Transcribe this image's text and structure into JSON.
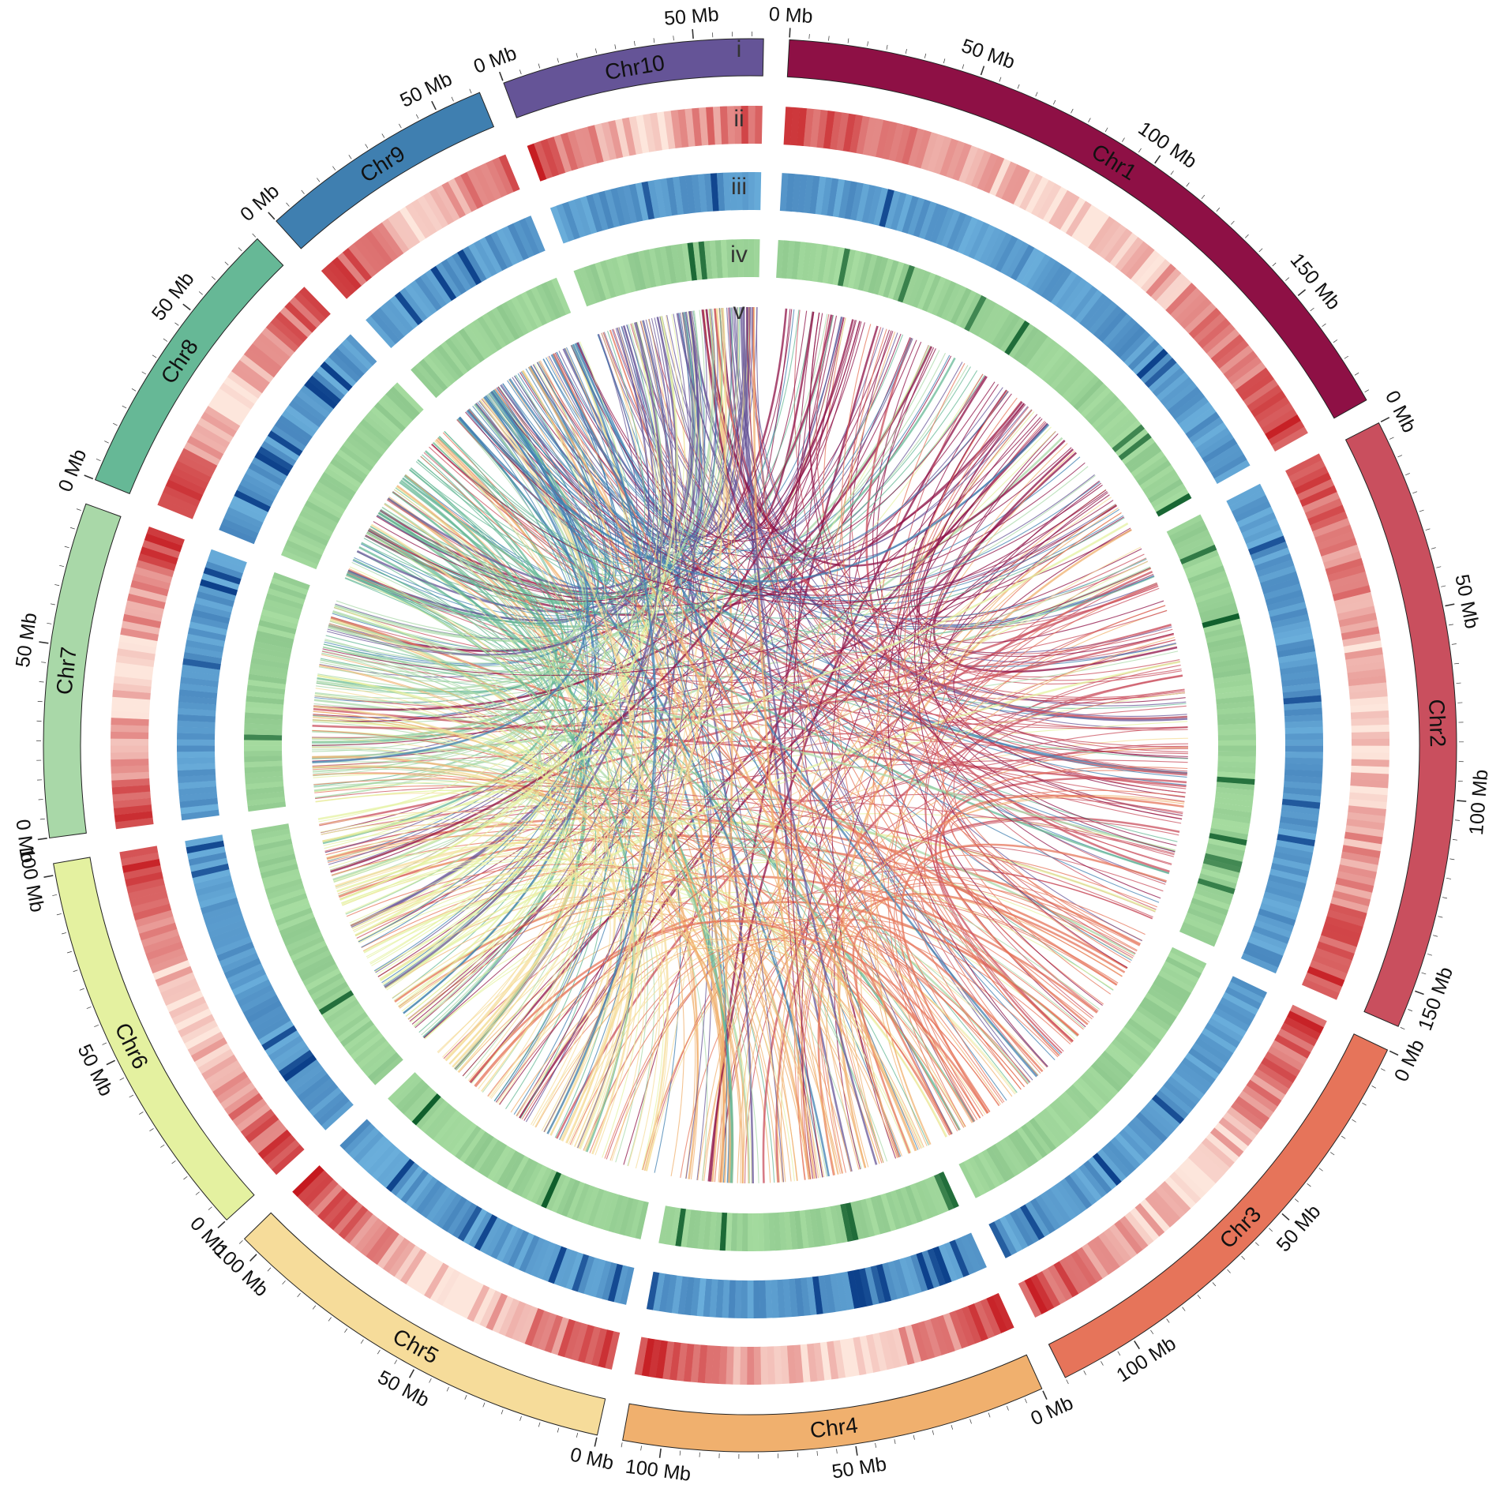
{
  "figure": {
    "track_labels": [
      "i",
      "ii",
      "iii",
      "iv",
      "v"
    ],
    "tick_unit": "Mb",
    "tick_interval_mb": 50,
    "chromosomes": [
      {
        "name": "Chr1",
        "length_mb": 182,
        "color": "#8e1045"
      },
      {
        "name": "Chr2",
        "length_mb": 160,
        "color": "#c94f5e"
      },
      {
        "name": "Chr3",
        "length_mb": 120,
        "color": "#e6745a"
      },
      {
        "name": "Chr4",
        "length_mb": 110,
        "color": "#f0b06e"
      },
      {
        "name": "Chr5",
        "length_mb": 105,
        "color": "#f6dc9a"
      },
      {
        "name": "Chr6",
        "length_mb": 103,
        "color": "#e4f1a0"
      },
      {
        "name": "Chr7",
        "length_mb": 87,
        "color": "#a9d8a8"
      },
      {
        "name": "Chr8",
        "length_mb": 75,
        "color": "#66b896"
      },
      {
        "name": "Chr9",
        "length_mb": 62,
        "color": "#3f7fb0"
      },
      {
        "name": "Chr10",
        "length_mb": 68,
        "color": "#655497"
      }
    ],
    "track_colors": {
      "density_red_high": "#c4161c",
      "density_red_low": "#fde6dc",
      "density_blue_base": "#6aaedb",
      "density_blue_dark": "#0b3f8a",
      "density_green_base": "#a6dca0",
      "density_green_dark": "#0a5a28"
    }
  }
}
